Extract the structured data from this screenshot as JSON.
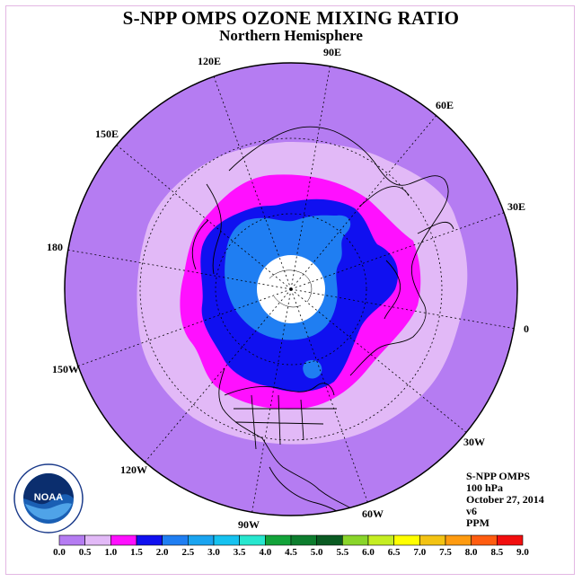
{
  "header": {
    "title": "S-NPP OMPS OZONE MIXING RATIO",
    "subtitle": "Northern Hemisphere"
  },
  "longitude_labels": [
    {
      "text": "90E"
    },
    {
      "text": "60E"
    },
    {
      "text": "30E"
    },
    {
      "text": "0"
    },
    {
      "text": "30W"
    },
    {
      "text": "60W"
    },
    {
      "text": "90W"
    },
    {
      "text": "120W"
    },
    {
      "text": "150W"
    },
    {
      "text": "180"
    },
    {
      "text": "150E"
    },
    {
      "text": "120E"
    }
  ],
  "info_box": {
    "instrument": "S-NPP OMPS",
    "level": "100 hPa",
    "date": "October 27, 2014",
    "version": "v6",
    "units": "PPM"
  },
  "logo": {
    "text": "NOAA",
    "icon": "noaa-logo-icon"
  },
  "colorbar": {
    "labels": [
      "0.0",
      "0.5",
      "1.0",
      "1.5",
      "2.0",
      "2.5",
      "3.0",
      "3.5",
      "4.0",
      "4.5",
      "5.0",
      "5.5",
      "6.0",
      "6.5",
      "7.0",
      "7.5",
      "8.0",
      "8.5",
      "9.0"
    ],
    "colors": [
      "#b57cf2",
      "#e2b9f7",
      "#ff10ff",
      "#1010f0",
      "#1f7ef2",
      "#1aa4f0",
      "#16c2f0",
      "#27e7cf",
      "#13a33a",
      "#0d7d2e",
      "#0a5a22",
      "#89d52a",
      "#c5ee22",
      "#ffff00",
      "#f3c313",
      "#ff9b10",
      "#ff5c10",
      "#f20e0e",
      "#8b5a3c"
    ]
  },
  "map_colors": {
    "outer": "#b57cf2",
    "band_05": "#e2b9f7",
    "band_10": "#ff10ff",
    "band_15": "#1010f0",
    "band_20": "#1f7ef2",
    "pole_fill": "#ffffff"
  }
}
